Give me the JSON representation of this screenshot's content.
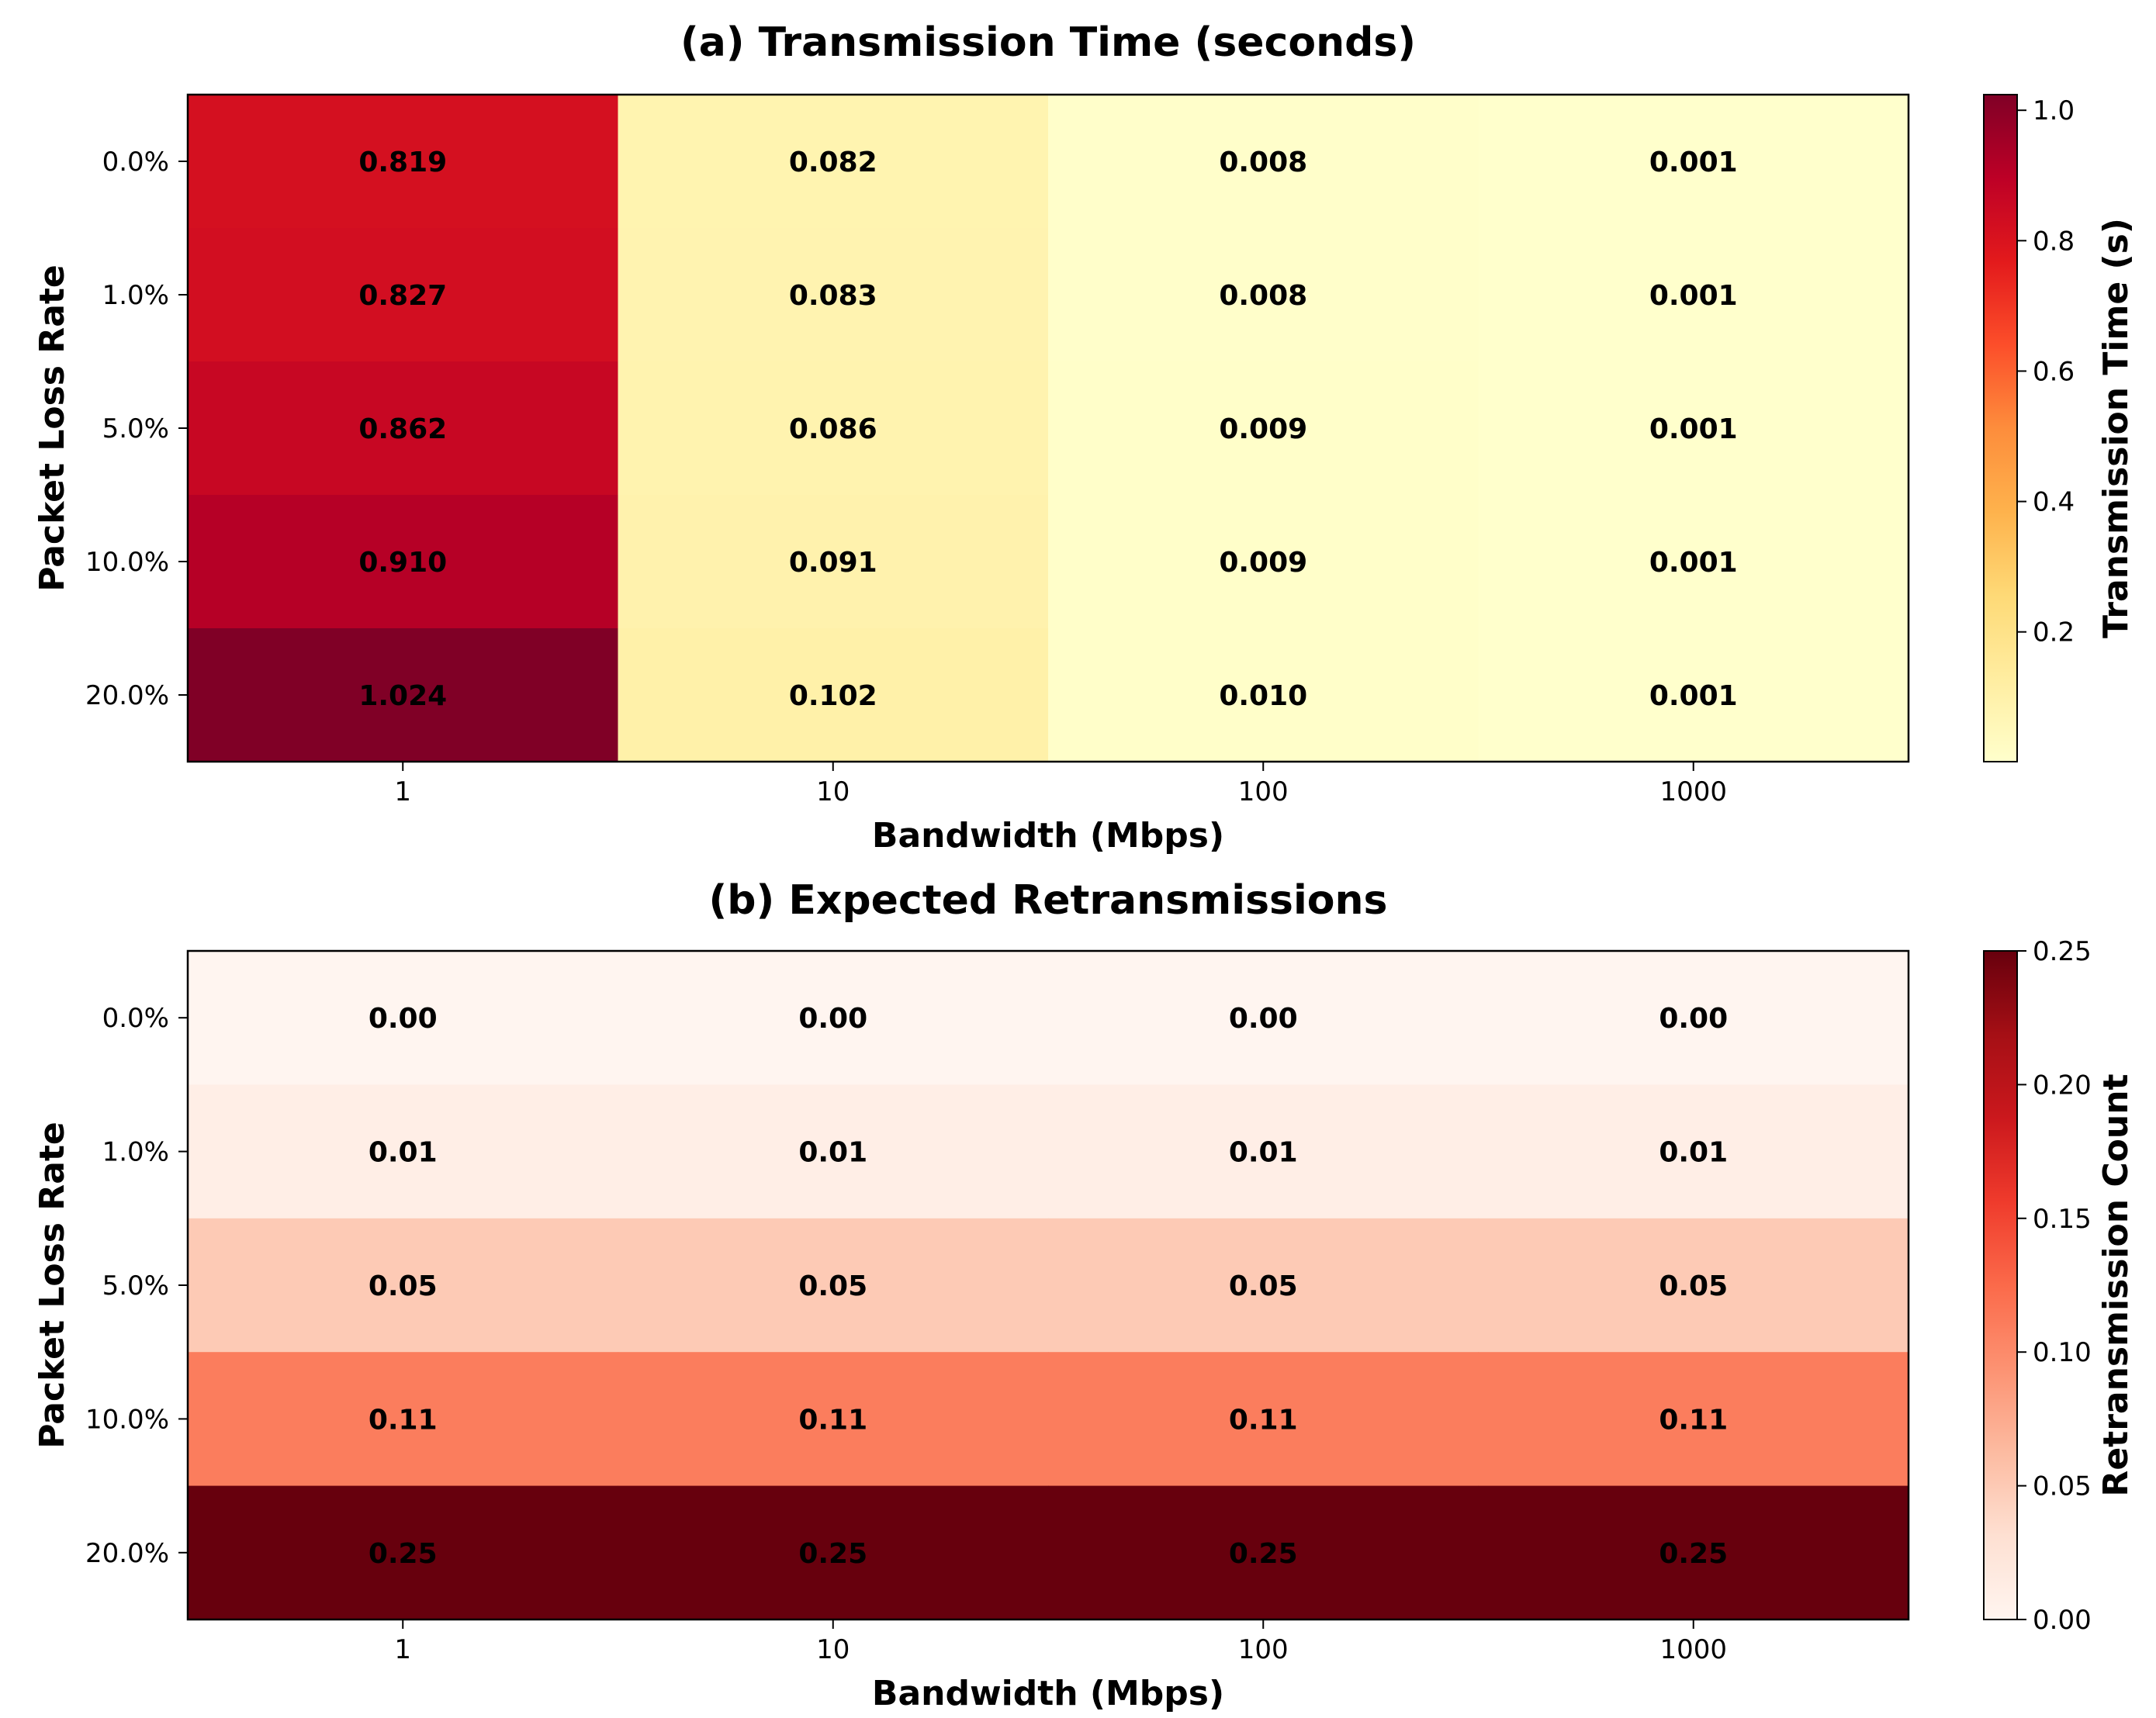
{
  "chart_data": [
    {
      "type": "heatmap",
      "title": "(a) Transmission Time (seconds)",
      "xlabel": "Bandwidth (Mbps)",
      "ylabel": "Packet Loss Rate",
      "x_categories": [
        "1",
        "10",
        "100",
        "1000"
      ],
      "y_categories": [
        "0.0%",
        "1.0%",
        "5.0%",
        "10.0%",
        "20.0%"
      ],
      "values": [
        [
          0.819,
          0.082,
          0.008,
          0.001
        ],
        [
          0.827,
          0.083,
          0.008,
          0.001
        ],
        [
          0.862,
          0.086,
          0.009,
          0.001
        ],
        [
          0.91,
          0.091,
          0.009,
          0.001
        ],
        [
          1.024,
          0.102,
          0.01,
          0.001
        ]
      ],
      "value_labels": [
        [
          "0.819",
          "0.082",
          "0.008",
          "0.001"
        ],
        [
          "0.827",
          "0.083",
          "0.008",
          "0.001"
        ],
        [
          "0.862",
          "0.086",
          "0.009",
          "0.001"
        ],
        [
          "0.910",
          "0.091",
          "0.009",
          "0.001"
        ],
        [
          "1.024",
          "0.102",
          "0.010",
          "0.001"
        ]
      ],
      "colormap": "YlOrRd",
      "color_range": [
        0.001,
        1.024
      ],
      "colorbar_label": "Transmission Time (s)",
      "colorbar_ticks": [
        0.2,
        0.4,
        0.6,
        0.8,
        1.0
      ],
      "colorbar_tick_labels": [
        "0.2",
        "0.4",
        "0.6",
        "0.8",
        "1.0"
      ],
      "grid": false
    },
    {
      "type": "heatmap",
      "title": "(b) Expected Retransmissions",
      "xlabel": "Bandwidth (Mbps)",
      "ylabel": "Packet Loss Rate",
      "x_categories": [
        "1",
        "10",
        "100",
        "1000"
      ],
      "y_categories": [
        "0.0%",
        "1.0%",
        "5.0%",
        "10.0%",
        "20.0%"
      ],
      "values": [
        [
          0.0,
          0.0,
          0.0,
          0.0
        ],
        [
          0.01,
          0.01,
          0.01,
          0.01
        ],
        [
          0.05,
          0.05,
          0.05,
          0.05
        ],
        [
          0.11,
          0.11,
          0.11,
          0.11
        ],
        [
          0.25,
          0.25,
          0.25,
          0.25
        ]
      ],
      "value_labels": [
        [
          "0.00",
          "0.00",
          "0.00",
          "0.00"
        ],
        [
          "0.01",
          "0.01",
          "0.01",
          "0.01"
        ],
        [
          "0.05",
          "0.05",
          "0.05",
          "0.05"
        ],
        [
          "0.11",
          "0.11",
          "0.11",
          "0.11"
        ],
        [
          "0.25",
          "0.25",
          "0.25",
          "0.25"
        ]
      ],
      "colormap": "Reds",
      "color_range": [
        0.0,
        0.25
      ],
      "colorbar_label": "Retransmission Count",
      "colorbar_ticks": [
        0.0,
        0.05,
        0.1,
        0.15,
        0.2,
        0.25
      ],
      "colorbar_tick_labels": [
        "0.00",
        "0.05",
        "0.10",
        "0.15",
        "0.20",
        "0.25"
      ],
      "grid": false
    }
  ]
}
